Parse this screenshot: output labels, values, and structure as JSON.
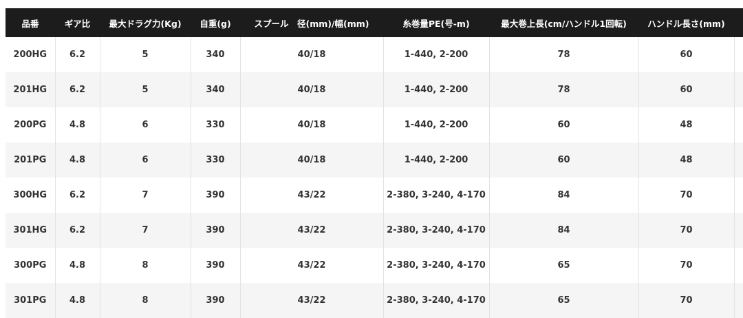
{
  "headers": [
    "品番",
    "ギア比",
    "最大ドラグ力(Kg)",
    "自重(g)",
    "スプール　径(mm)/幅(mm)",
    "糸巻量PE(号-m)",
    "最大巻上長(cm/ハンドル1回転)",
    "ハンドル長さ(mm)",
    ""
  ],
  "rows": [
    [
      "200HG",
      "6.2",
      "5",
      "340",
      "40/18",
      "1-440, 2-200",
      "78",
      "60",
      ""
    ],
    [
      "201HG",
      "6.2",
      "5",
      "340",
      "40/18",
      "1-440, 2-200",
      "78",
      "60",
      ""
    ],
    [
      "200PG",
      "4.8",
      "6",
      "330",
      "40/18",
      "1-440, 2-200",
      "60",
      "48",
      ""
    ],
    [
      "201PG",
      "4.8",
      "6",
      "330",
      "40/18",
      "1-440, 2-200",
      "60",
      "48",
      ""
    ],
    [
      "300HG",
      "6.2",
      "7",
      "390",
      "43/22",
      "2-380, 3-240, 4-170",
      "84",
      "70",
      ""
    ],
    [
      "301HG",
      "6.2",
      "7",
      "390",
      "43/22",
      "2-380, 3-240, 4-170",
      "84",
      "70",
      ""
    ],
    [
      "300PG",
      "4.8",
      "8",
      "390",
      "43/22",
      "2-380, 3-240, 4-170",
      "65",
      "70",
      ""
    ],
    [
      "301PG",
      "4.8",
      "8",
      "390",
      "43/22",
      "2-380, 3-240, 4-170",
      "65",
      "70",
      ""
    ]
  ]
}
